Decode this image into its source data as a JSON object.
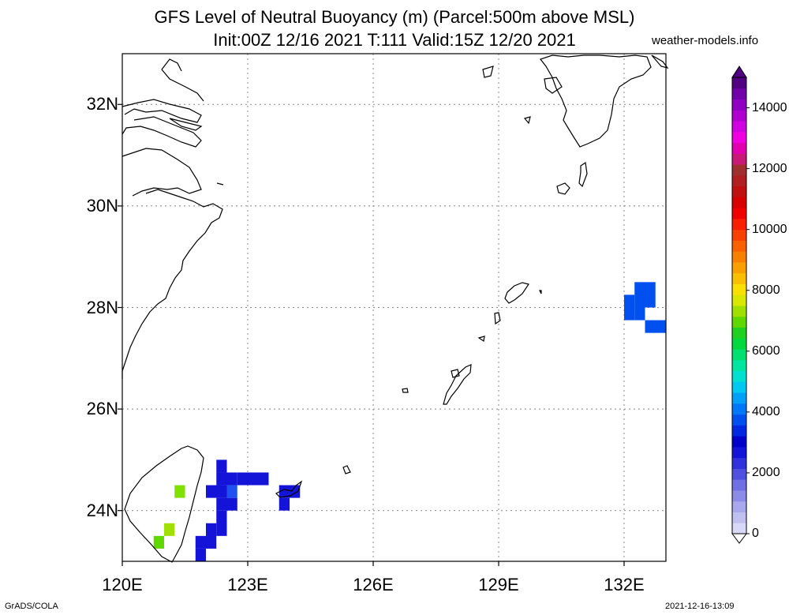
{
  "title_line1": "GFS Level of Neutral Buoyancy (m) (Parcel:500m above MSL)",
  "title_line2": "Init:00Z 12/16 2021 T:111 Valid:15Z 12/20 2021",
  "site": "weather-models.info",
  "footer_left": "GrADS/COLA",
  "footer_right": "2021-12-16-13:09",
  "lat_labels": [
    {
      "text": "32N",
      "lat": 32
    },
    {
      "text": "30N",
      "lat": 30
    },
    {
      "text": "28N",
      "lat": 28
    },
    {
      "text": "26N",
      "lat": 26
    },
    {
      "text": "24N",
      "lat": 24
    }
  ],
  "lon_labels": [
    {
      "text": "120E",
      "lon": 120
    },
    {
      "text": "123E",
      "lon": 123
    },
    {
      "text": "126E",
      "lon": 126
    },
    {
      "text": "129E",
      "lon": 129
    },
    {
      "text": "132E",
      "lon": 132
    }
  ],
  "map_extent": {
    "lon": [
      120,
      133
    ],
    "lat": [
      23,
      33
    ]
  },
  "colorbar": {
    "labels": [
      {
        "text": "14000",
        "value": 14000
      },
      {
        "text": "12000",
        "value": 12000
      },
      {
        "text": "10000",
        "value": 10000
      },
      {
        "text": "8000",
        "value": 8000
      },
      {
        "text": "6000",
        "value": 6000
      },
      {
        "text": "4000",
        "value": 4000
      },
      {
        "text": "2000",
        "value": 2000
      },
      {
        "text": "0",
        "value": 0
      }
    ],
    "colors": [
      "#d8d8f8",
      "#c0c0f0",
      "#a8a8ec",
      "#8c8ce8",
      "#7070e4",
      "#5050e0",
      "#3030dc",
      "#1414d8",
      "#0000c8",
      "#0028e0",
      "#0050f0",
      "#0078f8",
      "#00a0f8",
      "#00c8f0",
      "#00e0d0",
      "#00e6a0",
      "#00e070",
      "#00d840",
      "#20d020",
      "#60d800",
      "#a0e000",
      "#d8e800",
      "#f8e000",
      "#f8c000",
      "#f8a000",
      "#f88000",
      "#f86000",
      "#f84000",
      "#f82000",
      "#f00000",
      "#d80000",
      "#c01010",
      "#b02020",
      "#a03030",
      "#c81878",
      "#e000b0",
      "#f000e0",
      "#d000e0",
      "#b000d0",
      "#9000c0",
      "#7000a8",
      "#500080"
    ]
  },
  "cells": [
    {
      "lon": 132.0,
      "lat": 27.75,
      "w": 0.25,
      "h": 0.5,
      "c": "#0050f0"
    },
    {
      "lon": 132.25,
      "lat": 28.0,
      "w": 0.25,
      "h": 0.5,
      "c": "#0050f0"
    },
    {
      "lon": 132.25,
      "lat": 27.75,
      "w": 0.25,
      "h": 0.25,
      "c": "#0050f0"
    },
    {
      "lon": 132.5,
      "lat": 27.5,
      "w": 0.5,
      "h": 0.25,
      "c": "#0050f0"
    },
    {
      "lon": 132.5,
      "lat": 28.0,
      "w": 0.25,
      "h": 0.5,
      "c": "#0050f0"
    },
    {
      "lon": 122.25,
      "lat": 24.5,
      "w": 0.5,
      "h": 0.25,
      "c": "#1414d8"
    },
    {
      "lon": 122.25,
      "lat": 24.75,
      "w": 0.25,
      "h": 0.25,
      "c": "#1414d8"
    },
    {
      "lon": 122.0,
      "lat": 24.25,
      "w": 0.5,
      "h": 0.25,
      "c": "#1414d8"
    },
    {
      "lon": 122.25,
      "lat": 24.0,
      "w": 0.5,
      "h": 0.25,
      "c": "#1414d8"
    },
    {
      "lon": 122.75,
      "lat": 24.5,
      "w": 0.75,
      "h": 0.25,
      "c": "#1414d8"
    },
    {
      "lon": 122.5,
      "lat": 24.25,
      "w": 0.25,
      "h": 0.25,
      "c": "#2050f0"
    },
    {
      "lon": 123.75,
      "lat": 24.25,
      "w": 0.5,
      "h": 0.25,
      "c": "#1414d8"
    },
    {
      "lon": 123.75,
      "lat": 24.0,
      "w": 0.25,
      "h": 0.25,
      "c": "#1414d8"
    },
    {
      "lon": 122.25,
      "lat": 23.5,
      "w": 0.25,
      "h": 0.5,
      "c": "#1414d8"
    },
    {
      "lon": 122.0,
      "lat": 23.25,
      "w": 0.25,
      "h": 0.5,
      "c": "#1414d8"
    },
    {
      "lon": 121.75,
      "lat": 23.0,
      "w": 0.25,
      "h": 0.25,
      "c": "#1414d8"
    },
    {
      "lon": 121.75,
      "lat": 23.25,
      "w": 0.25,
      "h": 0.25,
      "c": "#1414d8"
    },
    {
      "lon": 121.25,
      "lat": 24.25,
      "w": 0.25,
      "h": 0.25,
      "c": "#80e000"
    },
    {
      "lon": 121.0,
      "lat": 23.5,
      "w": 0.25,
      "h": 0.25,
      "c": "#a0e000"
    },
    {
      "lon": 120.75,
      "lat": 23.25,
      "w": 0.25,
      "h": 0.25,
      "c": "#60d800"
    }
  ]
}
